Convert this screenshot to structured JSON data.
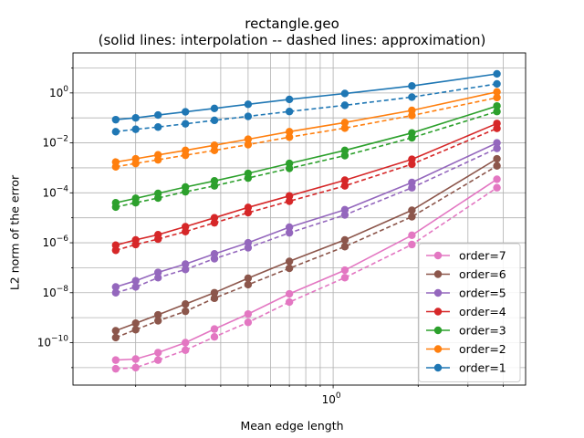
{
  "chart_data": {
    "type": "line",
    "title": "rectangle.geo",
    "subtitle": "(solid lines: interpolation -- dashed lines: approximation)",
    "xlabel": "Mean edge length",
    "ylabel": "L2 norm of the error",
    "xscale": "log",
    "yscale": "log",
    "xlim": [
      0.12,
      4.8
    ],
    "ylim": [
      2e-12,
      40
    ],
    "xticks": [
      {
        "value": 1,
        "label": "10^0"
      }
    ],
    "yticks": [
      {
        "value": 1e-10,
        "label": "10^-10"
      },
      {
        "value": 1e-08,
        "label": "10^-8"
      },
      {
        "value": 1e-06,
        "label": "10^-6"
      },
      {
        "value": 0.0001,
        "label": "10^-4"
      },
      {
        "value": 0.01,
        "label": "10^-2"
      },
      {
        "value": 1,
        "label": "10^0"
      }
    ],
    "grid": true,
    "legend_position": "lower right",
    "x": [
      0.17,
      0.2,
      0.24,
      0.3,
      0.38,
      0.5,
      0.7,
      1.1,
      1.9,
      3.8
    ],
    "series": [
      {
        "name": "order=7",
        "color": "#e377c2",
        "interpolation": [
          2e-11,
          2.2e-11,
          4e-11,
          1e-10,
          3.5e-10,
          1.4e-09,
          9e-09,
          8e-08,
          2e-06,
          0.00035
        ],
        "approximation": [
          9e-12,
          1e-11,
          2e-11,
          5e-11,
          1.7e-10,
          6.5e-10,
          4.2e-09,
          4e-08,
          8.5e-07,
          0.00016
        ]
      },
      {
        "name": "order=6",
        "color": "#8c564b",
        "interpolation": [
          3e-10,
          6e-10,
          1.3e-09,
          3.5e-09,
          1e-08,
          3.8e-08,
          1.8e-07,
          1.3e-06,
          2e-05,
          0.0023
        ],
        "approximation": [
          1.6e-10,
          3.3e-10,
          7.5e-10,
          1.8e-09,
          6e-09,
          2.1e-08,
          9.5e-08,
          7e-07,
          1.1e-05,
          0.0012
        ]
      },
      {
        "name": "order=5",
        "color": "#9467bd",
        "interpolation": [
          1.7e-08,
          3e-08,
          6.5e-08,
          1.4e-07,
          3.6e-07,
          1e-06,
          4.2e-06,
          2.1e-05,
          0.00026,
          0.01
        ],
        "approximation": [
          1e-08,
          1.7e-08,
          4e-08,
          8.5e-08,
          2.3e-07,
          6.3e-07,
          2.5e-06,
          1.3e-05,
          0.00016,
          0.006
        ]
      },
      {
        "name": "order=4",
        "color": "#d62728",
        "interpolation": [
          8e-07,
          1.3e-06,
          2.1e-06,
          4.4e-06,
          1e-05,
          2.6e-05,
          7.5e-05,
          0.00032,
          0.0022,
          0.06
        ],
        "approximation": [
          5e-07,
          8.5e-07,
          1.4e-06,
          2.8e-06,
          6.3e-06,
          1.6e-05,
          4.6e-05,
          0.00019,
          0.0014,
          0.038
        ]
      },
      {
        "name": "order=3",
        "color": "#2ca02c",
        "interpolation": [
          4e-05,
          6e-05,
          9.5e-05,
          0.00017,
          0.0003,
          0.0006,
          0.0015,
          0.005,
          0.025,
          0.3
        ],
        "approximation": [
          2.7e-05,
          4e-05,
          6.2e-05,
          0.00011,
          0.00019,
          0.00039,
          0.00095,
          0.0031,
          0.016,
          0.18
        ]
      },
      {
        "name": "order=2",
        "color": "#ff7f0e",
        "interpolation": [
          0.0017,
          0.0023,
          0.0033,
          0.005,
          0.008,
          0.014,
          0.028,
          0.065,
          0.2,
          1.1
        ],
        "approximation": [
          0.0011,
          0.0015,
          0.0021,
          0.0032,
          0.005,
          0.0085,
          0.017,
          0.039,
          0.125,
          0.65
        ]
      },
      {
        "name": "order=1",
        "color": "#1f77b4",
        "interpolation": [
          0.085,
          0.1,
          0.13,
          0.175,
          0.24,
          0.35,
          0.55,
          0.95,
          1.9,
          5.8
        ],
        "approximation": [
          0.028,
          0.035,
          0.043,
          0.058,
          0.08,
          0.115,
          0.18,
          0.32,
          0.68,
          2.3
        ]
      }
    ],
    "legend_order": [
      "order=7",
      "order=6",
      "order=5",
      "order=4",
      "order=3",
      "order=2",
      "order=1"
    ]
  }
}
